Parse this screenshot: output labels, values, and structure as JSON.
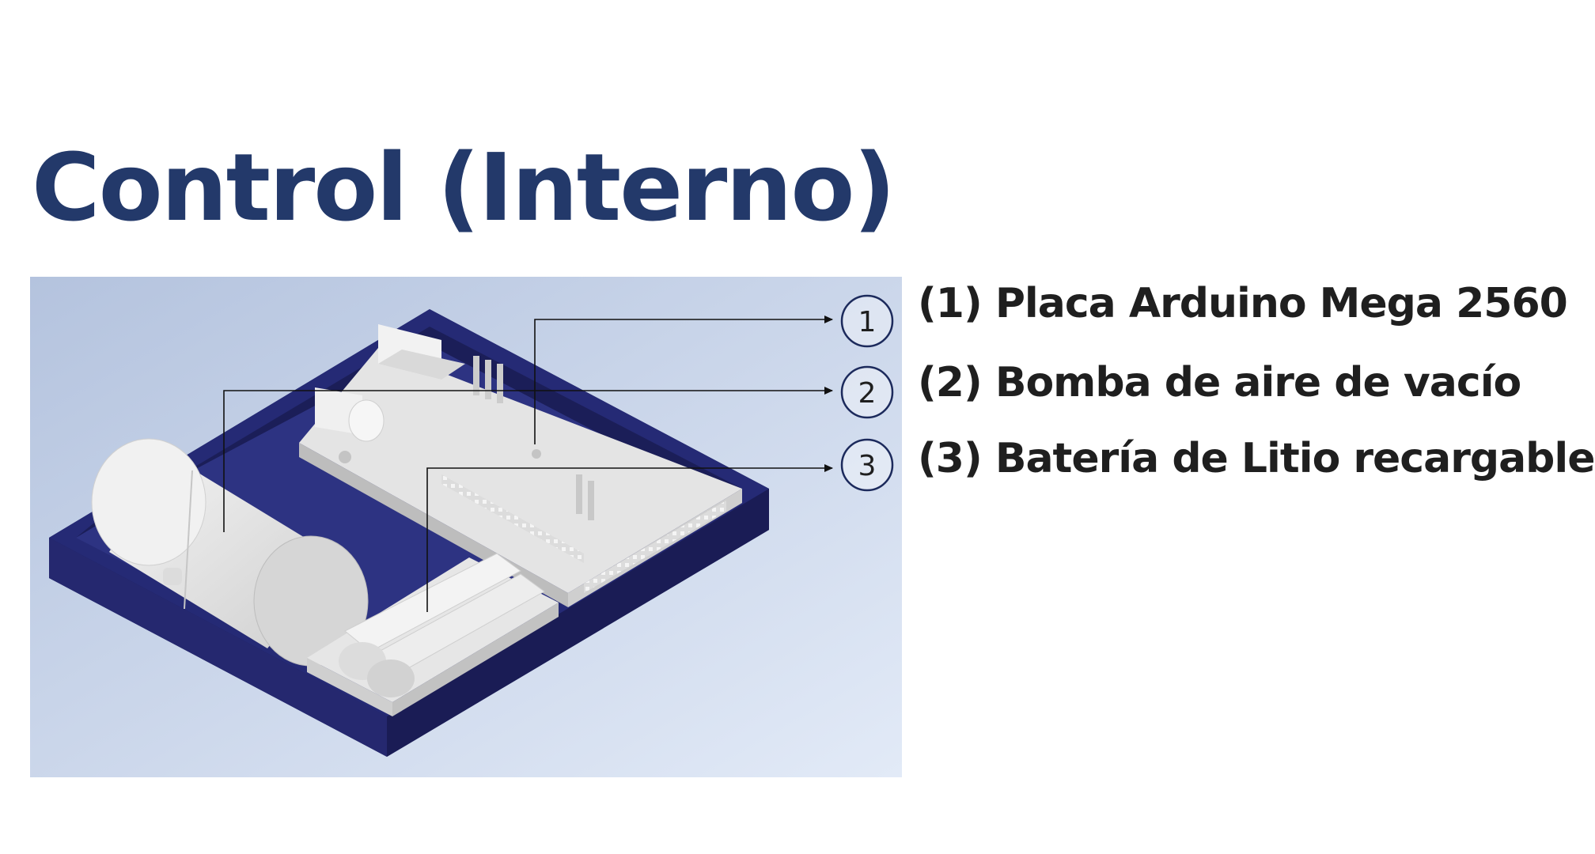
{
  "slide": {
    "title": "Control (Interno)"
  },
  "colors": {
    "title": "#23396a",
    "tray": "#1f2270",
    "background_gradient_top": "#b7c5df",
    "background_gradient_bottom": "#dfe8f6",
    "component": "#e9e9e9"
  },
  "callouts": [
    {
      "number": "1",
      "text": "(1) Placa Arduino Mega 2560"
    },
    {
      "number": "2",
      "text": "(2) Bomba de aire de vacío"
    },
    {
      "number": "3",
      "text": "(3) Batería de Litio recargable"
    }
  ]
}
